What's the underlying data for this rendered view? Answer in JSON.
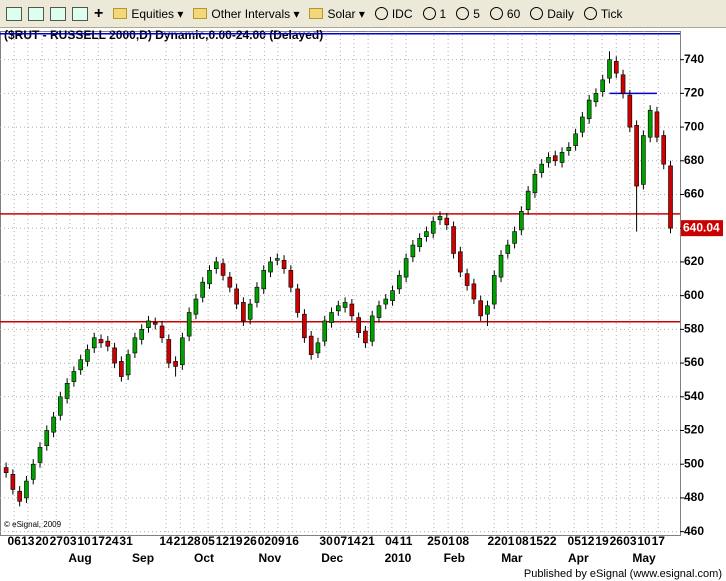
{
  "toolbar": {
    "items": [
      "Equities",
      "Other Intervals",
      "Solar",
      "IDC",
      "1",
      "5",
      "60",
      "Daily",
      "Tick"
    ]
  },
  "footer": "Published by eSignal (www.esignal.com)",
  "chart_data": {
    "type": "candlestick",
    "title": "($RUT - RUSSELL 2000,D) Dynamic,0.00-24.00 (Delayed)",
    "copyright": "© eSignal, 2009",
    "up_color": "#00a000",
    "down_color": "#d00000",
    "open": [
      498,
      494,
      484,
      480,
      491,
      501,
      511,
      519,
      529,
      539,
      549,
      556,
      561,
      569,
      574,
      573,
      569,
      561,
      553,
      566,
      574,
      581,
      584,
      582,
      574,
      561,
      559,
      576,
      589,
      599,
      607,
      616,
      619,
      611,
      604,
      596,
      586,
      596,
      604,
      614,
      621,
      621,
      615,
      604,
      589,
      576,
      566,
      573,
      584,
      591,
      593,
      595,
      587,
      579,
      573,
      587,
      595,
      597,
      604,
      611,
      623,
      629,
      635,
      637,
      645,
      646,
      641,
      626,
      613,
      607,
      597,
      589,
      595,
      611,
      625,
      631,
      639,
      651,
      661,
      673,
      679,
      683,
      679,
      686,
      689,
      697,
      705,
      715,
      721,
      729,
      739,
      731,
      719,
      701,
      666,
      694,
      709,
      695,
      677
    ],
    "high": [
      501,
      497,
      487,
      493,
      503,
      513,
      523,
      531,
      543,
      551,
      558,
      565,
      571,
      578,
      577,
      576,
      572,
      564,
      568,
      578,
      583,
      588,
      587,
      585,
      577,
      564,
      578,
      593,
      601,
      611,
      618,
      623,
      622,
      614,
      607,
      599,
      598,
      608,
      618,
      623,
      625,
      624,
      618,
      607,
      592,
      579,
      575,
      588,
      593,
      597,
      599,
      598,
      590,
      582,
      591,
      597,
      601,
      606,
      615,
      625,
      633,
      637,
      641,
      647,
      650,
      649,
      644,
      629,
      616,
      610,
      600,
      597,
      615,
      627,
      633,
      641,
      653,
      665,
      675,
      681,
      685,
      686,
      688,
      691,
      699,
      709,
      719,
      723,
      731,
      745,
      742,
      734,
      722,
      704,
      698,
      713,
      712,
      698,
      680
    ],
    "low": [
      492,
      482,
      475,
      477,
      488,
      498,
      508,
      516,
      526,
      536,
      546,
      553,
      558,
      566,
      569,
      567,
      557,
      549,
      550,
      563,
      571,
      578,
      580,
      572,
      557,
      552,
      556,
      573,
      586,
      596,
      604,
      613,
      609,
      602,
      592,
      582,
      583,
      593,
      601,
      611,
      618,
      613,
      602,
      587,
      572,
      562,
      563,
      570,
      581,
      588,
      590,
      585,
      575,
      569,
      570,
      584,
      592,
      594,
      601,
      608,
      620,
      626,
      632,
      634,
      642,
      639,
      622,
      611,
      603,
      595,
      585,
      582,
      592,
      608,
      622,
      628,
      636,
      648,
      658,
      670,
      676,
      677,
      676,
      683,
      686,
      694,
      702,
      712,
      718,
      726,
      729,
      717,
      697,
      638,
      663,
      691,
      691,
      675,
      637
    ],
    "close": [
      495,
      485,
      478,
      490,
      500,
      510,
      520,
      528,
      540,
      548,
      555,
      562,
      568,
      575,
      572,
      570,
      560,
      552,
      565,
      575,
      580,
      585,
      583,
      575,
      560,
      558,
      575,
      590,
      598,
      608,
      615,
      620,
      612,
      605,
      595,
      585,
      595,
      605,
      615,
      620,
      622,
      616,
      605,
      590,
      575,
      565,
      572,
      585,
      590,
      594,
      596,
      588,
      578,
      572,
      588,
      594,
      598,
      603,
      612,
      622,
      630,
      634,
      638,
      644,
      647,
      642,
      625,
      614,
      606,
      598,
      588,
      594,
      612,
      624,
      630,
      638,
      650,
      662,
      672,
      678,
      682,
      680,
      685,
      688,
      696,
      706,
      716,
      720,
      728,
      740,
      732,
      720,
      700,
      665,
      695,
      710,
      694,
      678,
      640.04
    ],
    "xlim": [
      -0.9,
      99.4
    ],
    "xticks": [
      {
        "value": 1.2,
        "label": "06"
      },
      {
        "value": 3.2,
        "label": "13"
      },
      {
        "value": 5.3,
        "label": "20"
      },
      {
        "value": 7.4,
        "label": "27"
      },
      {
        "value": 9.4,
        "label": "03"
      },
      {
        "value": 11.5,
        "label": "10"
      },
      {
        "value": 13.6,
        "label": "17"
      },
      {
        "value": 15.6,
        "label": "24"
      },
      {
        "value": 17.7,
        "label": "31"
      },
      {
        "value": 23.6,
        "label": "14"
      },
      {
        "value": 25.7,
        "label": "21"
      },
      {
        "value": 27.7,
        "label": "28"
      },
      {
        "value": 29.8,
        "label": "05"
      },
      {
        "value": 31.9,
        "label": "12"
      },
      {
        "value": 33.9,
        "label": "19"
      },
      {
        "value": 36.0,
        "label": "26"
      },
      {
        "value": 38.1,
        "label": "02"
      },
      {
        "value": 40.1,
        "label": "09"
      },
      {
        "value": 42.2,
        "label": "16"
      },
      {
        "value": 47.2,
        "label": "30"
      },
      {
        "value": 49.3,
        "label": "07"
      },
      {
        "value": 51.3,
        "label": "14"
      },
      {
        "value": 53.4,
        "label": "21"
      },
      {
        "value": 56.9,
        "label": "04"
      },
      {
        "value": 59.0,
        "label": "11"
      },
      {
        "value": 63.1,
        "label": "25"
      },
      {
        "value": 65.2,
        "label": "01"
      },
      {
        "value": 67.3,
        "label": "08"
      },
      {
        "value": 72.0,
        "label": "22"
      },
      {
        "value": 74.0,
        "label": "01"
      },
      {
        "value": 76.1,
        "label": "08"
      },
      {
        "value": 78.2,
        "label": "15"
      },
      {
        "value": 80.2,
        "label": "22"
      },
      {
        "value": 83.8,
        "label": "05"
      },
      {
        "value": 85.8,
        "label": "12"
      },
      {
        "value": 87.9,
        "label": "19"
      },
      {
        "value": 90.0,
        "label": "26"
      },
      {
        "value": 92.0,
        "label": "03"
      },
      {
        "value": 94.1,
        "label": "10"
      },
      {
        "value": 96.2,
        "label": "17"
      }
    ],
    "month_ticks": [
      {
        "value": 10.9,
        "label": "Aug"
      },
      {
        "value": 20.2,
        "label": "Sep"
      },
      {
        "value": 29.2,
        "label": "Oct"
      },
      {
        "value": 38.9,
        "label": "Nov"
      },
      {
        "value": 48.1,
        "label": "Dec"
      },
      {
        "value": 57.8,
        "label": "2010"
      },
      {
        "value": 66.1,
        "label": "Feb"
      },
      {
        "value": 74.6,
        "label": "Mar"
      },
      {
        "value": 84.4,
        "label": "Apr"
      },
      {
        "value": 94.1,
        "label": "May"
      }
    ],
    "ylim": [
      458,
      757
    ],
    "yticks": [
      460,
      480,
      500,
      520,
      540,
      560,
      580,
      600,
      620,
      640,
      660,
      680,
      700,
      720,
      740
    ],
    "grid": true,
    "hlines": [
      {
        "value": 755.4,
        "color": "#0000cc"
      },
      {
        "value": 648.5,
        "color": "#cc0000"
      },
      {
        "value": 584.5,
        "color": "#cc0000"
      },
      {
        "value": 720,
        "color": "#0000cc",
        "from": 89,
        "to": 96
      }
    ],
    "last_color": "#cc0000"
  }
}
